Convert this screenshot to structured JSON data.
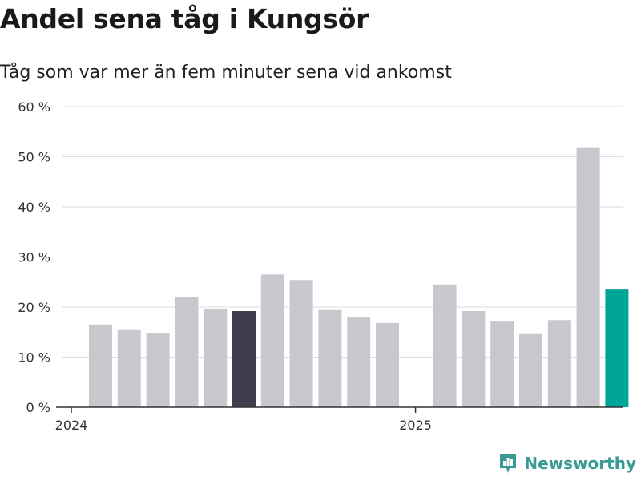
{
  "title": "Andel sena tåg i Kungsör",
  "subtitle": "Tåg som var mer än fem minuter sena vid ankomst",
  "brand": {
    "name": "Newsworthy",
    "icon": "bar-chart-pin-icon"
  },
  "colors": {
    "default": "#c8c7cd",
    "highlight_dark": "#403e4c",
    "highlight_accent": "#00a59a",
    "grid": "#dddddd",
    "axis": "#333333",
    "brand": "#3a9b94"
  },
  "chart_data": {
    "type": "bar",
    "categories": [
      "2024-01",
      "2024-02",
      "2024-03",
      "2024-04",
      "2024-05",
      "2024-06",
      "2024-07",
      "2024-08",
      "2024-09",
      "2024-10",
      "2024-11",
      "2025-01",
      "2025-02",
      "2025-03",
      "2025-04",
      "2025-05",
      "2025-06",
      "2025-07"
    ],
    "values": [
      16.5,
      15.4,
      14.8,
      22.0,
      19.6,
      19.2,
      26.5,
      25.4,
      19.4,
      17.9,
      16.8,
      24.5,
      19.2,
      17.1,
      14.6,
      17.4,
      51.9,
      23.5
    ],
    "highlight": {
      "2024-06": "highlight_dark",
      "2025-07": "highlight_accent"
    },
    "xticks": [
      {
        "at": "2024-01",
        "label": "2024"
      },
      {
        "at": "2025-01",
        "label": "2025"
      }
    ],
    "yticks": [
      0,
      10,
      20,
      30,
      40,
      50,
      60
    ],
    "ytick_labels": [
      "0 %",
      "10 %",
      "20 %",
      "30 %",
      "40 %",
      "50 %",
      "60 %"
    ],
    "ylim": [
      0,
      60
    ],
    "grid": true,
    "legend": "none"
  }
}
